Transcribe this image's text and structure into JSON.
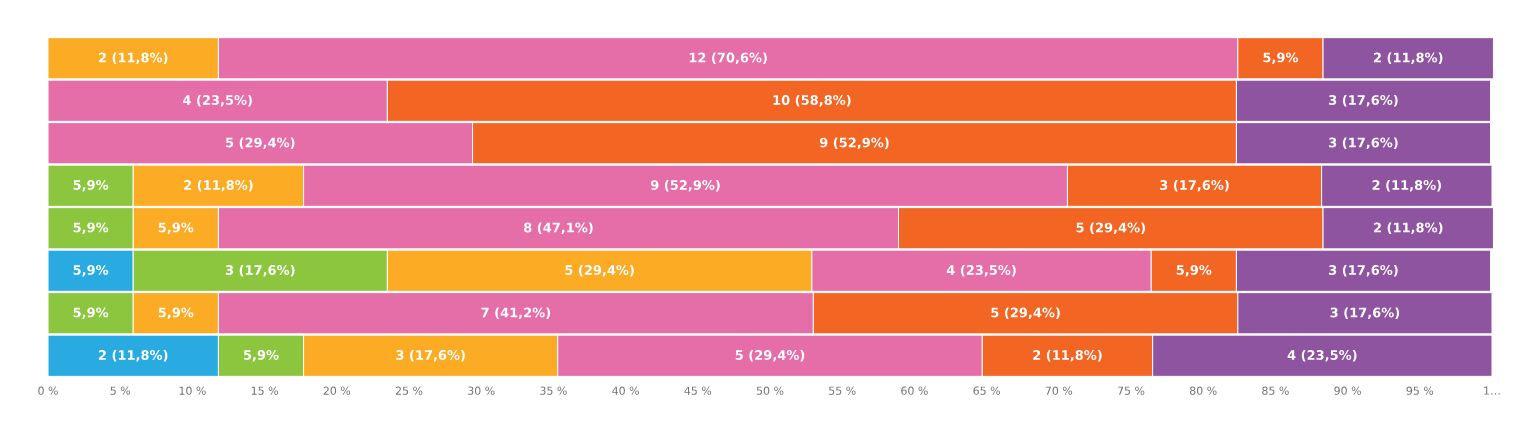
{
  "chart_data": {
    "type": "bar",
    "orientation": "horizontal",
    "stacked": true,
    "categories": [
      null,
      null,
      null,
      null,
      null,
      null,
      null,
      null
    ],
    "series": [
      {
        "color": "#29abe2",
        "values": [
          null,
          null,
          null,
          null,
          null,
          5.9,
          null,
          11.8
        ],
        "value_labels": [
          null,
          null,
          null,
          null,
          null,
          "5,9%",
          null,
          "2 (11,8%)"
        ]
      },
      {
        "color": "#8cc63f",
        "values": [
          null,
          null,
          null,
          5.9,
          5.9,
          17.6,
          5.9,
          5.9
        ],
        "value_labels": [
          null,
          null,
          null,
          "5,9%",
          "5,9%",
          "3 (17,6%)",
          "5,9%",
          "5,9%"
        ]
      },
      {
        "color": "#fbab24",
        "values": [
          11.8,
          null,
          null,
          11.8,
          5.9,
          29.4,
          5.9,
          17.6
        ],
        "value_labels": [
          "2 (11,8%)",
          null,
          null,
          "2 (11,8%)",
          "5,9%",
          "5 (29,4%)",
          "5,9%",
          "3 (17,6%)"
        ]
      },
      {
        "color": "#e56ea8",
        "values": [
          70.6,
          23.5,
          29.4,
          52.9,
          47.1,
          23.5,
          41.2,
          29.4
        ],
        "value_labels": [
          "12 (70,6%)",
          "4 (23,5%)",
          "5 (29,4%)",
          "9 (52,9%)",
          "8 (47,1%)",
          "4 (23,5%)",
          "7 (41,2%)",
          "5 (29,4%)"
        ]
      },
      {
        "color": "#f26522",
        "values": [
          5.9,
          58.8,
          52.9,
          17.6,
          29.4,
          5.9,
          29.4,
          11.8
        ],
        "value_labels": [
          "5,9%",
          "10 (58,8%)",
          "9 (52,9%)",
          "3 (17,6%)",
          "5 (29,4%)",
          "5,9%",
          "5 (29,4%)",
          "2 (11,8%)"
        ]
      },
      {
        "color": "#8e54a0",
        "values": [
          11.8,
          17.6,
          17.6,
          11.8,
          11.8,
          17.6,
          17.6,
          23.5
        ],
        "value_labels": [
          "2 (11,8%)",
          "3 (17,6%)",
          "3 (17,6%)",
          "2 (11,8%)",
          "2 (11,8%)",
          "3 (17,6%)",
          "3 (17,6%)",
          "4 (23,5%)"
        ]
      }
    ],
    "xlim": [
      0,
      100
    ],
    "xticks": [
      {
        "value": 0,
        "label": "0 %"
      },
      {
        "value": 5,
        "label": "5 %"
      },
      {
        "value": 10,
        "label": "10 %"
      },
      {
        "value": 15,
        "label": "15 %"
      },
      {
        "value": 20,
        "label": "20 %"
      },
      {
        "value": 25,
        "label": "25 %"
      },
      {
        "value": 30,
        "label": "30 %"
      },
      {
        "value": 35,
        "label": "35 %"
      },
      {
        "value": 40,
        "label": "40 %"
      },
      {
        "value": 45,
        "label": "45 %"
      },
      {
        "value": 50,
        "label": "50 %"
      },
      {
        "value": 55,
        "label": "55 %"
      },
      {
        "value": 60,
        "label": "60 %"
      },
      {
        "value": 65,
        "label": "65 %"
      },
      {
        "value": 70,
        "label": "70 %"
      },
      {
        "value": 75,
        "label": "75 %"
      },
      {
        "value": 80,
        "label": "80 %"
      },
      {
        "value": 85,
        "label": "85 %"
      },
      {
        "value": 90,
        "label": "90 %"
      },
      {
        "value": 95,
        "label": "95 %"
      },
      {
        "value": 100,
        "label": "1…"
      }
    ]
  }
}
